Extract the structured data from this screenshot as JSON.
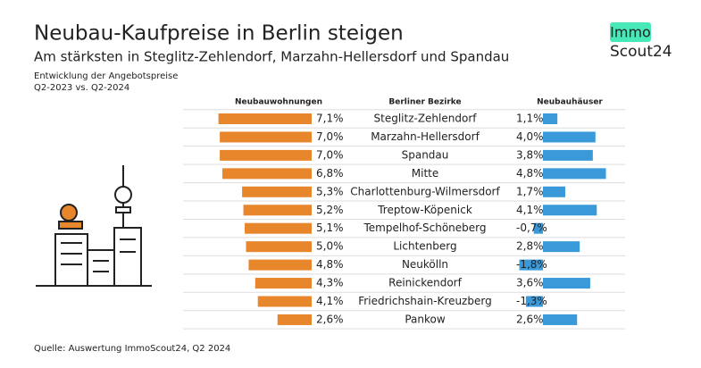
{
  "chart_data": {
    "type": "butterfly_bar",
    "title": "Neubau-Kaufpreise in Berlin steigen",
    "subtitle": "Am stärksten in Steglitz-Zehlendorf, Marzahn-Hellersdorf und Spandau",
    "note": [
      "Entwicklung der Angebotspreise",
      "Q2-2023 vs. Q2-2024"
    ],
    "source": "Quelle: Auswertung ImmoScout24, Q2 2024",
    "category_header": "Berliner Bezirke",
    "categories": [
      "Steglitz-Zehlendorf",
      "Marzahn-Hellersdorf",
      "Spandau",
      "Mitte",
      "Charlottenburg-Wilmersdorf",
      "Treptow-Köpenick",
      "Tempelhof-Schöneberg",
      "Lichtenberg",
      "Neukölln",
      "Reinickendorf",
      "Friedrichshain-Kreuzberg",
      "Pankow"
    ],
    "series": [
      {
        "name": "Neubauwohnungen",
        "color": "#e8862c",
        "side": "left",
        "values": [
          7.1,
          7.0,
          7.0,
          6.8,
          5.3,
          5.2,
          5.1,
          5.0,
          4.8,
          4.3,
          4.1,
          2.6
        ],
        "value_labels": [
          "7,1%",
          "7,0%",
          "7,0%",
          "6,8%",
          "5,3%",
          "5,2%",
          "5,1%",
          "5,0%",
          "4,8%",
          "4,3%",
          "4,1%",
          "2,6%"
        ]
      },
      {
        "name": "Neubauhäuser",
        "color": "#3a9ad9",
        "side": "right",
        "values": [
          1.1,
          4.0,
          3.8,
          4.8,
          1.7,
          4.1,
          -0.7,
          2.8,
          -1.8,
          3.6,
          -1.3,
          2.6
        ],
        "value_labels": [
          "1,1%",
          "4,0%",
          "3,8%",
          "4,8%",
          "1,7%",
          "4,1%",
          "-0,7%",
          "2,8%",
          "-1,8%",
          "3,6%",
          "-1,3%",
          "2,6%"
        ]
      }
    ]
  },
  "logo": {
    "top": "Immo",
    "bottom": "Scout24"
  }
}
